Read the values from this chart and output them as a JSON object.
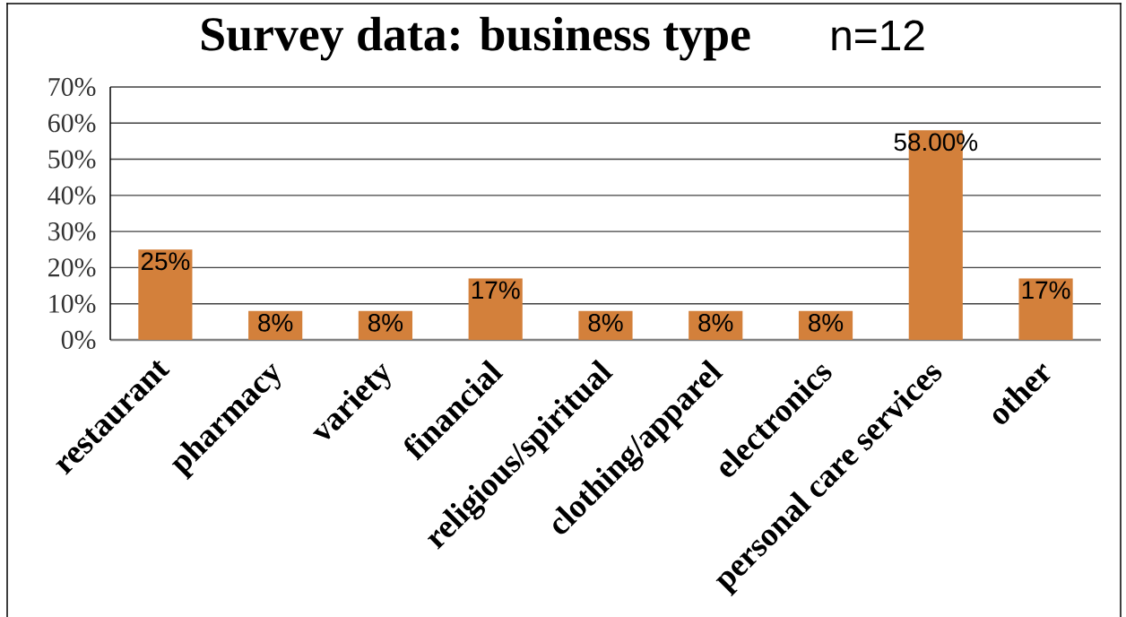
{
  "chart_data": {
    "type": "bar",
    "title": "Survey data: business type",
    "subtitle": "n=12",
    "categories": [
      "restaurant",
      "pharmacy",
      "variety",
      "financial",
      "religious/spiritual",
      "clothing/apparel",
      "electronics",
      "personal care services",
      "other"
    ],
    "values": [
      25,
      8,
      8,
      17,
      8,
      8,
      8,
      58,
      17
    ],
    "value_labels": [
      "25%",
      "8%",
      "8%",
      "17%",
      "8%",
      "8%",
      "8%",
      "58.00%",
      "17%"
    ],
    "color": "#d3803b",
    "ylim": [
      0,
      70
    ],
    "yticks": [
      {
        "value": 0,
        "label": "0%"
      },
      {
        "value": 10,
        "label": "10%"
      },
      {
        "value": 20,
        "label": "20%"
      },
      {
        "value": 30,
        "label": "30%"
      },
      {
        "value": 40,
        "label": "40%"
      },
      {
        "value": 50,
        "label": "50%"
      },
      {
        "value": 60,
        "label": "60%"
      },
      {
        "value": 70,
        "label": "70%"
      }
    ],
    "grid": "y"
  }
}
